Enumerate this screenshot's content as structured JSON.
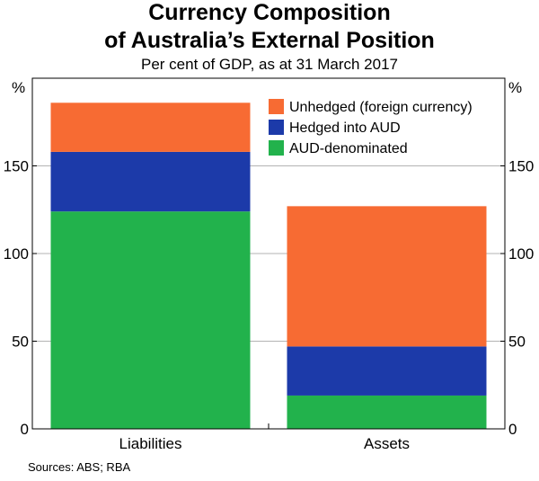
{
  "title_line1": "Currency Composition",
  "title_line2": "of Australia’s External Position",
  "subtitle": "Per cent of GDP, as at 31 March 2017",
  "source": "Sources: ABS; RBA",
  "colors": {
    "unhedged": "#f76b33",
    "hedged": "#1c3aa9",
    "aud": "#22b24c",
    "gridline": "#b3b3b3"
  },
  "chart_data": {
    "type": "bar",
    "stacked": true,
    "title": "Currency Composition of Australia’s External Position",
    "subtitle": "Per cent of GDP, as at 31 March 2017",
    "categories": [
      "Liabilities",
      "Assets"
    ],
    "series": [
      {
        "name": "AUD-denominated",
        "values": [
          124,
          19
        ],
        "color": "#22b24c"
      },
      {
        "name": "Hedged into AUD",
        "values": [
          34,
          28
        ],
        "color": "#1c3aa9"
      },
      {
        "name": "Unhedged (foreign currency)",
        "values": [
          28,
          80
        ],
        "color": "#f76b33"
      }
    ],
    "legend_order": [
      "Unhedged (foreign currency)",
      "Hedged into AUD",
      "AUD-denominated"
    ],
    "legend_position": "top-right",
    "ylim": [
      0,
      200
    ],
    "yticks": [
      0,
      50,
      100,
      150
    ],
    "ylabel_left": "%",
    "ylabel_right": "%",
    "grid": true
  }
}
